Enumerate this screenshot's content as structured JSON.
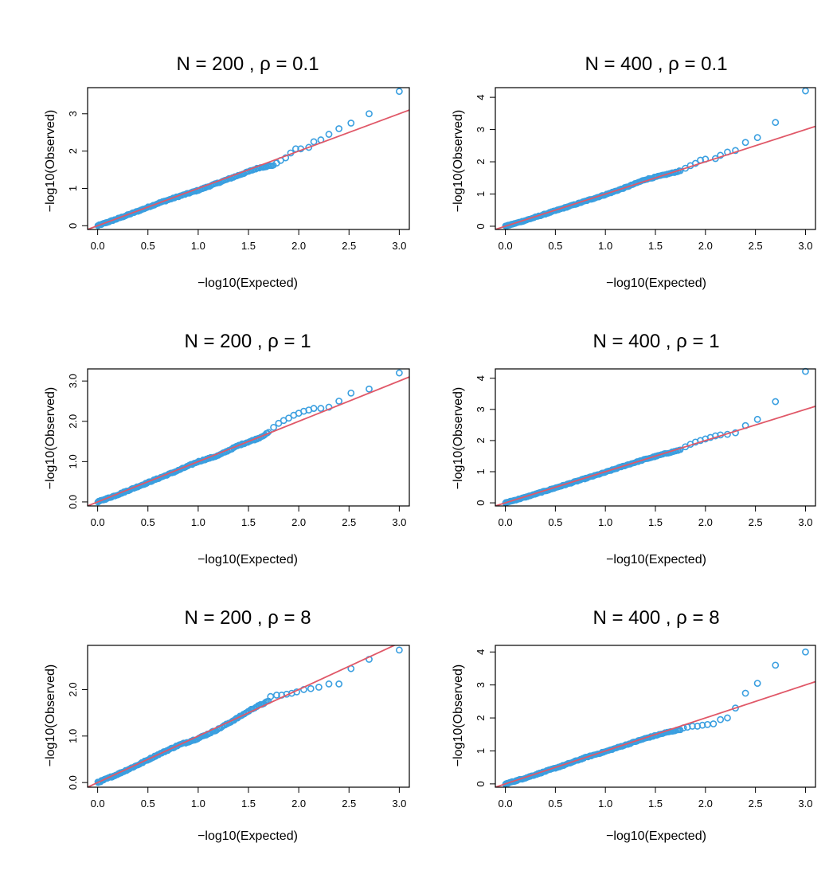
{
  "colors": {
    "points": "#3a9fe0",
    "line": "#e05868",
    "axis": "#000000"
  },
  "chart_data": [
    {
      "type": "scatter",
      "title": "N = 200 ,  ρ = 0.1",
      "xlabel": "−log10(Expected)",
      "ylabel": "−log10(Observed)",
      "xlim": [
        -0.1,
        3.1
      ],
      "ylim": [
        -0.1,
        3.7
      ],
      "xticks": [
        0,
        0.5,
        1,
        1.5,
        2,
        2.5,
        3
      ],
      "xtick_labels": [
        "0.0",
        "0.5",
        "1.0",
        "1.5",
        "2.0",
        "2.5",
        "3.0"
      ],
      "yticks": [
        0,
        1,
        2,
        3
      ],
      "ytick_labels": [
        "0",
        "1",
        "2",
        "3"
      ],
      "reference_line": {
        "slope": 1,
        "intercept": 0
      },
      "bulk_points": [
        [
          0,
          0
        ],
        [
          0.2,
          0.19
        ],
        [
          0.4,
          0.39
        ],
        [
          0.6,
          0.6
        ],
        [
          0.8,
          0.78
        ],
        [
          1.0,
          0.95
        ],
        [
          1.2,
          1.15
        ],
        [
          1.4,
          1.35
        ],
        [
          1.6,
          1.55
        ],
        [
          1.75,
          1.62
        ]
      ],
      "tail_points": [
        [
          1.78,
          1.68
        ],
        [
          1.82,
          1.75
        ],
        [
          1.87,
          1.82
        ],
        [
          1.92,
          1.95
        ],
        [
          1.97,
          2.06
        ],
        [
          2.02,
          2.06
        ],
        [
          2.1,
          2.1
        ],
        [
          2.15,
          2.25
        ],
        [
          2.22,
          2.3
        ],
        [
          2.3,
          2.45
        ],
        [
          2.4,
          2.6
        ],
        [
          2.52,
          2.75
        ],
        [
          2.7,
          3.0
        ],
        [
          3.0,
          3.6
        ]
      ]
    },
    {
      "type": "scatter",
      "title": "N = 400 ,  ρ = 0.1",
      "xlabel": "−log10(Expected)",
      "ylabel": "−log10(Observed)",
      "xlim": [
        -0.1,
        3.1
      ],
      "ylim": [
        -0.1,
        4.3
      ],
      "xticks": [
        0,
        0.5,
        1,
        1.5,
        2,
        2.5,
        3
      ],
      "xtick_labels": [
        "0.0",
        "0.5",
        "1.0",
        "1.5",
        "2.0",
        "2.5",
        "3.0"
      ],
      "yticks": [
        0,
        1,
        2,
        3,
        4
      ],
      "ytick_labels": [
        "0",
        "1",
        "2",
        "3",
        "4"
      ],
      "reference_line": {
        "slope": 1,
        "intercept": 0
      },
      "bulk_points": [
        [
          0,
          0
        ],
        [
          0.2,
          0.18
        ],
        [
          0.4,
          0.38
        ],
        [
          0.6,
          0.58
        ],
        [
          0.8,
          0.78
        ],
        [
          1.0,
          0.98
        ],
        [
          1.2,
          1.2
        ],
        [
          1.4,
          1.45
        ],
        [
          1.6,
          1.6
        ],
        [
          1.75,
          1.72
        ]
      ],
      "tail_points": [
        [
          1.8,
          1.8
        ],
        [
          1.85,
          1.88
        ],
        [
          1.9,
          1.95
        ],
        [
          1.95,
          2.05
        ],
        [
          2.0,
          2.08
        ],
        [
          2.1,
          2.1
        ],
        [
          2.15,
          2.2
        ],
        [
          2.22,
          2.3
        ],
        [
          2.3,
          2.35
        ],
        [
          2.4,
          2.6
        ],
        [
          2.52,
          2.75
        ],
        [
          2.7,
          3.22
        ],
        [
          3.0,
          4.2
        ]
      ]
    },
    {
      "type": "scatter",
      "title": "N = 200 ,  ρ = 1",
      "xlabel": "−log10(Expected)",
      "ylabel": "−log10(Observed)",
      "xlim": [
        -0.1,
        3.1
      ],
      "ylim": [
        -0.1,
        3.3
      ],
      "xticks": [
        0,
        0.5,
        1,
        1.5,
        2,
        2.5,
        3
      ],
      "xtick_labels": [
        "0.0",
        "0.5",
        "1.0",
        "1.5",
        "2.0",
        "2.5",
        "3.0"
      ],
      "yticks": [
        0,
        1,
        2,
        3
      ],
      "ytick_labels": [
        "0.0",
        "1.0",
        "2.0",
        "3.0"
      ],
      "reference_line": {
        "slope": 1,
        "intercept": 0
      },
      "bulk_points": [
        [
          0,
          0
        ],
        [
          0.2,
          0.18
        ],
        [
          0.4,
          0.38
        ],
        [
          0.6,
          0.58
        ],
        [
          0.8,
          0.78
        ],
        [
          1.0,
          1.0
        ],
        [
          1.2,
          1.15
        ],
        [
          1.4,
          1.4
        ],
        [
          1.6,
          1.58
        ],
        [
          1.7,
          1.72
        ]
      ],
      "tail_points": [
        [
          1.75,
          1.85
        ],
        [
          1.8,
          1.95
        ],
        [
          1.85,
          2.02
        ],
        [
          1.9,
          2.08
        ],
        [
          1.95,
          2.15
        ],
        [
          2.0,
          2.2
        ],
        [
          2.05,
          2.25
        ],
        [
          2.1,
          2.28
        ],
        [
          2.15,
          2.32
        ],
        [
          2.22,
          2.32
        ],
        [
          2.3,
          2.35
        ],
        [
          2.4,
          2.5
        ],
        [
          2.52,
          2.7
        ],
        [
          2.7,
          2.8
        ],
        [
          3.0,
          3.2
        ]
      ]
    },
    {
      "type": "scatter",
      "title": "N = 400 ,  ρ = 1",
      "xlabel": "−log10(Expected)",
      "ylabel": "−log10(Observed)",
      "xlim": [
        -0.1,
        3.1
      ],
      "ylim": [
        -0.1,
        4.3
      ],
      "xticks": [
        0,
        0.5,
        1,
        1.5,
        2,
        2.5,
        3
      ],
      "xtick_labels": [
        "0.0",
        "0.5",
        "1.0",
        "1.5",
        "2.0",
        "2.5",
        "3.0"
      ],
      "yticks": [
        0,
        1,
        2,
        3,
        4
      ],
      "ytick_labels": [
        "0",
        "1",
        "2",
        "3",
        "4"
      ],
      "reference_line": {
        "slope": 1,
        "intercept": 0
      },
      "bulk_points": [
        [
          0,
          0
        ],
        [
          0.2,
          0.18
        ],
        [
          0.4,
          0.38
        ],
        [
          0.6,
          0.58
        ],
        [
          0.8,
          0.78
        ],
        [
          1.0,
          0.98
        ],
        [
          1.2,
          1.2
        ],
        [
          1.4,
          1.4
        ],
        [
          1.6,
          1.58
        ],
        [
          1.75,
          1.7
        ]
      ],
      "tail_points": [
        [
          1.8,
          1.8
        ],
        [
          1.85,
          1.88
        ],
        [
          1.9,
          1.95
        ],
        [
          1.95,
          2.0
        ],
        [
          2.0,
          2.05
        ],
        [
          2.05,
          2.1
        ],
        [
          2.1,
          2.15
        ],
        [
          2.15,
          2.18
        ],
        [
          2.22,
          2.2
        ],
        [
          2.3,
          2.25
        ],
        [
          2.4,
          2.48
        ],
        [
          2.52,
          2.68
        ],
        [
          2.7,
          3.25
        ],
        [
          3.0,
          4.22
        ]
      ]
    },
    {
      "type": "scatter",
      "title": "N = 200 ,  ρ = 8",
      "xlabel": "−log10(Expected)",
      "ylabel": "−log10(Observed)",
      "xlim": [
        -0.1,
        3.1
      ],
      "ylim": [
        -0.1,
        2.95
      ],
      "xticks": [
        0,
        0.5,
        1,
        1.5,
        2,
        2.5,
        3
      ],
      "xtick_labels": [
        "0.0",
        "0.5",
        "1.0",
        "1.5",
        "2.0",
        "2.5",
        "3.0"
      ],
      "yticks": [
        0,
        1,
        2
      ],
      "ytick_labels": [
        "0.0",
        "1.0",
        "2.0"
      ],
      "reference_line": {
        "slope": 1,
        "intercept": 0
      },
      "bulk_points": [
        [
          0,
          0
        ],
        [
          0.2,
          0.18
        ],
        [
          0.4,
          0.38
        ],
        [
          0.6,
          0.6
        ],
        [
          0.8,
          0.8
        ],
        [
          1.0,
          0.95
        ],
        [
          1.2,
          1.15
        ],
        [
          1.4,
          1.4
        ],
        [
          1.55,
          1.6
        ],
        [
          1.7,
          1.75
        ]
      ],
      "tail_points": [
        [
          1.72,
          1.85
        ],
        [
          1.78,
          1.88
        ],
        [
          1.83,
          1.88
        ],
        [
          1.88,
          1.9
        ],
        [
          1.93,
          1.92
        ],
        [
          1.98,
          1.95
        ],
        [
          2.05,
          2.0
        ],
        [
          2.12,
          2.02
        ],
        [
          2.2,
          2.05
        ],
        [
          2.3,
          2.12
        ],
        [
          2.4,
          2.12
        ],
        [
          2.52,
          2.45
        ],
        [
          2.7,
          2.65
        ],
        [
          3.0,
          2.85
        ]
      ]
    },
    {
      "type": "scatter",
      "title": "N = 400 ,  ρ = 8",
      "xlabel": "−log10(Expected)",
      "ylabel": "−log10(Observed)",
      "xlim": [
        -0.1,
        3.1
      ],
      "ylim": [
        -0.1,
        4.2
      ],
      "xticks": [
        0,
        0.5,
        1,
        1.5,
        2,
        2.5,
        3
      ],
      "xtick_labels": [
        "0.0",
        "0.5",
        "1.0",
        "1.5",
        "2.0",
        "2.5",
        "3.0"
      ],
      "yticks": [
        0,
        1,
        2,
        3,
        4
      ],
      "ytick_labels": [
        "0",
        "1",
        "2",
        "3",
        "4"
      ],
      "reference_line": {
        "slope": 1,
        "intercept": 0
      },
      "bulk_points": [
        [
          0,
          0
        ],
        [
          0.2,
          0.18
        ],
        [
          0.4,
          0.38
        ],
        [
          0.6,
          0.58
        ],
        [
          0.8,
          0.8
        ],
        [
          1.0,
          0.98
        ],
        [
          1.2,
          1.18
        ],
        [
          1.4,
          1.38
        ],
        [
          1.6,
          1.55
        ],
        [
          1.75,
          1.65
        ]
      ],
      "tail_points": [
        [
          1.78,
          1.7
        ],
        [
          1.82,
          1.72
        ],
        [
          1.87,
          1.75
        ],
        [
          1.92,
          1.75
        ],
        [
          1.97,
          1.78
        ],
        [
          2.02,
          1.8
        ],
        [
          2.08,
          1.82
        ],
        [
          2.15,
          1.95
        ],
        [
          2.22,
          2.0
        ],
        [
          2.3,
          2.3
        ],
        [
          2.4,
          2.75
        ],
        [
          2.52,
          3.05
        ],
        [
          2.7,
          3.6
        ],
        [
          3.0,
          4.0
        ]
      ]
    }
  ]
}
